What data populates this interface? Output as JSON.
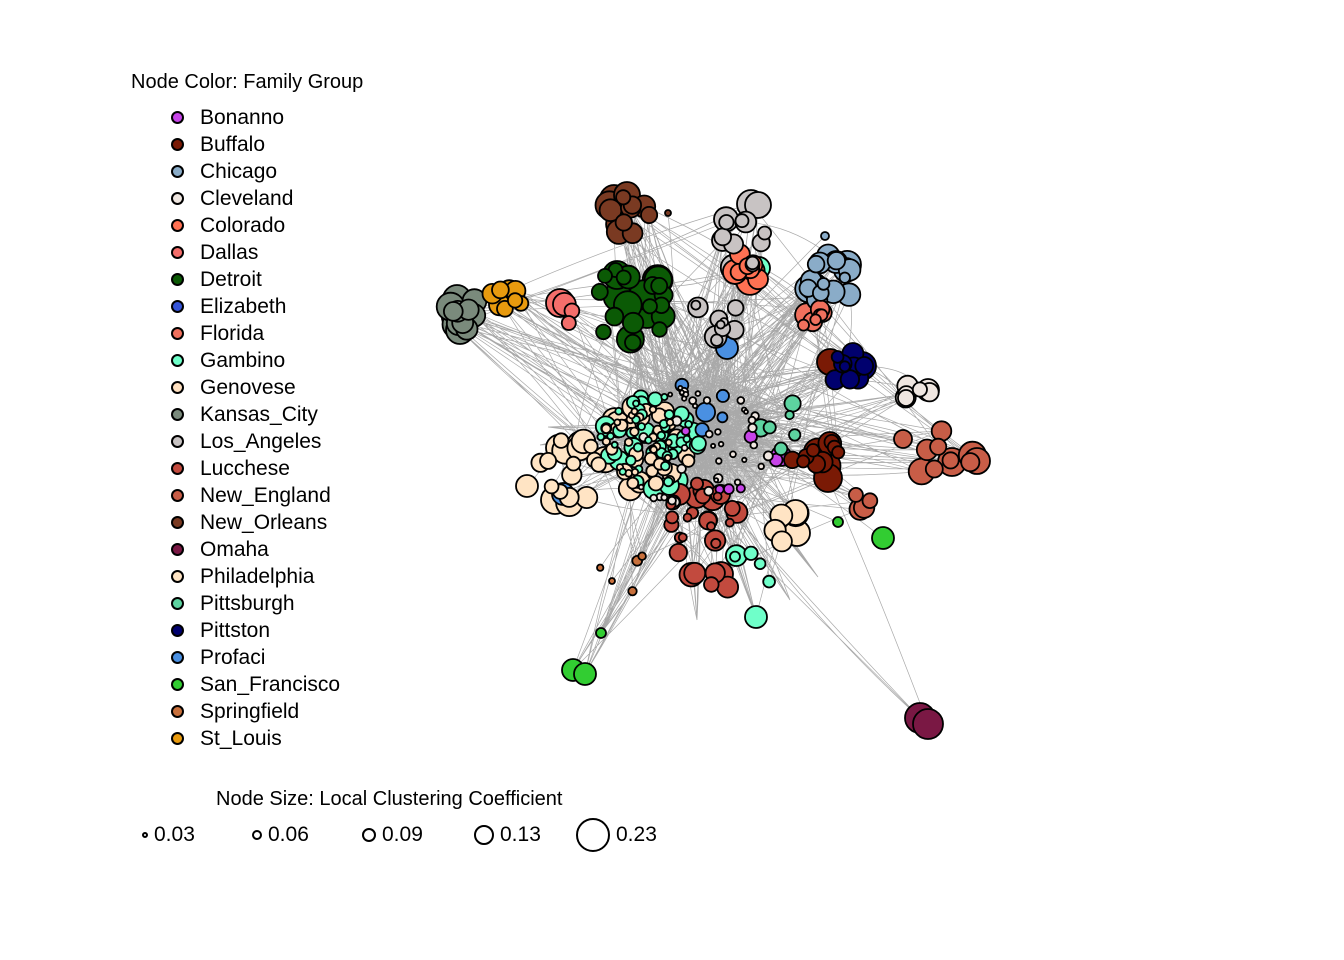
{
  "legend": {
    "color_title": "Node Color: Family Group",
    "groups": [
      {
        "name": "Bonanno",
        "color": "#c744e8"
      },
      {
        "name": "Buffalo",
        "color": "#7a1a05"
      },
      {
        "name": "Chicago",
        "color": "#8aacc8"
      },
      {
        "name": "Cleveland",
        "color": "#efe6e0"
      },
      {
        "name": "Colorado",
        "color": "#ff7153"
      },
      {
        "name": "Dallas",
        "color": "#f46e6b"
      },
      {
        "name": "Detroit",
        "color": "#0b5a05"
      },
      {
        "name": "Elizabeth",
        "color": "#3554d8"
      },
      {
        "name": "Florida",
        "color": "#f0705d"
      },
      {
        "name": "Gambino",
        "color": "#6fffc9"
      },
      {
        "name": "Genovese",
        "color": "#ffe0c0"
      },
      {
        "name": "Kansas_City",
        "color": "#7a8a7c"
      },
      {
        "name": "Los_Angeles",
        "color": "#c8c3c3"
      },
      {
        "name": "Lucchese",
        "color": "#c24a3e"
      },
      {
        "name": "New_England",
        "color": "#c85d47"
      },
      {
        "name": "New_Orleans",
        "color": "#7a3a22"
      },
      {
        "name": "Omaha",
        "color": "#7a1844"
      },
      {
        "name": "Philadelphia",
        "color": "#ffe4c4"
      },
      {
        "name": "Pittsburgh",
        "color": "#5dd3a0"
      },
      {
        "name": "Pittston",
        "color": "#00006e"
      },
      {
        "name": "Profaci",
        "color": "#4a90e2"
      },
      {
        "name": "San_Francisco",
        "color": "#32cd32"
      },
      {
        "name": "Springfield",
        "color": "#c8703c"
      },
      {
        "name": "St_Louis",
        "color": "#e89a0e"
      }
    ],
    "size_title": "Node Size: Local Clustering Coefficient",
    "sizes": [
      {
        "label": "0.03",
        "value": 0.03
      },
      {
        "label": "0.06",
        "value": 0.06
      },
      {
        "label": "0.09",
        "value": 0.09
      },
      {
        "label": "0.13",
        "value": 0.13
      },
      {
        "label": "0.23",
        "value": 0.23
      }
    ]
  }
}
